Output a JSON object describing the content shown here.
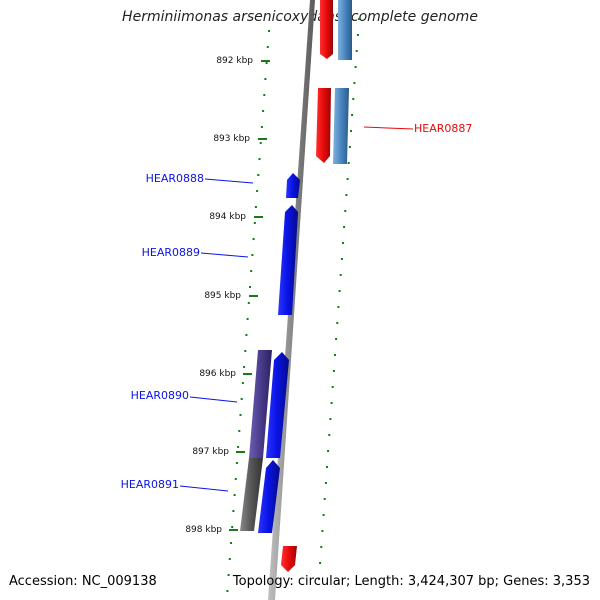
{
  "title": "Herminiimonas arsenicoxydans, complete genome",
  "accession": "Accession: NC_009138",
  "topology": "Topology: circular; Length: 3,424,307 bp; Genes: 3,353",
  "colors": {
    "forward_gene": "#0a14e6",
    "reverse_gene": "#e80a0a",
    "cds_steelblue": "#4a86c0",
    "cds_gray": "#555555",
    "cds_purple": "#4a3c8c",
    "tick": "#1a7a1a",
    "backbone": "#8a8a8a"
  },
  "ticks": [
    {
      "label": "892 kbp"
    },
    {
      "label": "893 kbp"
    },
    {
      "label": "894 kbp"
    },
    {
      "label": "895 kbp"
    },
    {
      "label": "896 kbp"
    },
    {
      "label": "897 kbp"
    },
    {
      "label": "898 kbp"
    }
  ],
  "labels": [
    {
      "text": "HEAR0887",
      "color": "#e80a0a"
    },
    {
      "text": "HEAR0888",
      "color": "#0a14e6"
    },
    {
      "text": "HEAR0889",
      "color": "#0a14e6"
    },
    {
      "text": "HEAR0890",
      "color": "#0a14e6"
    },
    {
      "text": "HEAR0891",
      "color": "#0a14e6"
    }
  ]
}
